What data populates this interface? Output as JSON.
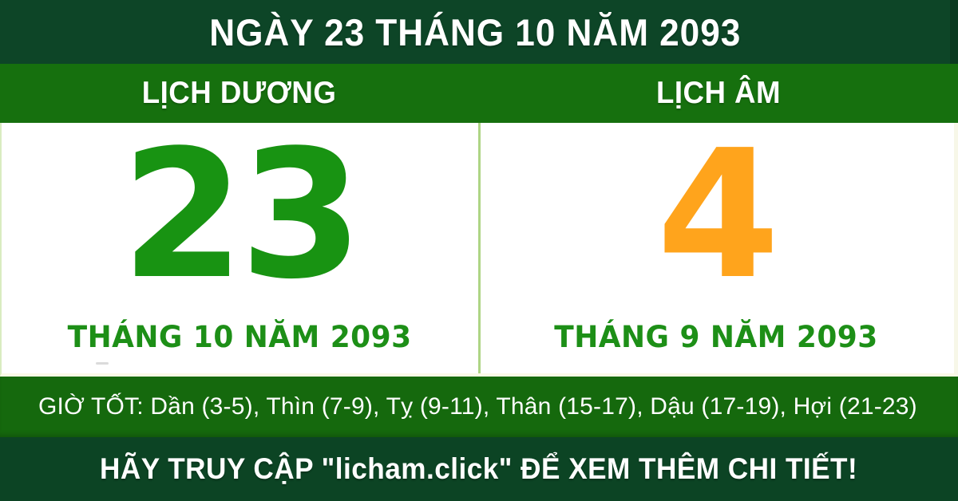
{
  "header": {
    "title": "NGÀY 23 THÁNG 10 NĂM 2093"
  },
  "tabs": {
    "solar_label": "LỊCH DƯƠNG",
    "lunar_label": "LỊCH ÂM"
  },
  "solar": {
    "day": "23",
    "month_year": "THÁNG 10 NĂM 2093"
  },
  "lunar": {
    "day": "4",
    "month_year": "THÁNG 9 NĂM 2093"
  },
  "good_hours": {
    "text": "GIỜ TỐT: Dần (3-5), Thìn (7-9), Tỵ (9-11), Thân (15-17), Dậu (17-19), Hợi (21-23)"
  },
  "footer": {
    "text": "HÃY TRUY CẬP \"licham.click\" ĐỂ XEM THÊM CHI TIẾT!"
  },
  "colors": {
    "header_bg": "#0d4527",
    "tab_bg": "#16700e",
    "hours_bg": "#15690d",
    "footer_bg": "#0c4424",
    "panel_bg": "#ffffff",
    "solar_day": "#189312",
    "lunar_day": "#ffa41c",
    "month_text": "#1d8f17",
    "divider": "#aed585",
    "edge_line": "#fbf8e6",
    "text_light": "#ffffff"
  }
}
